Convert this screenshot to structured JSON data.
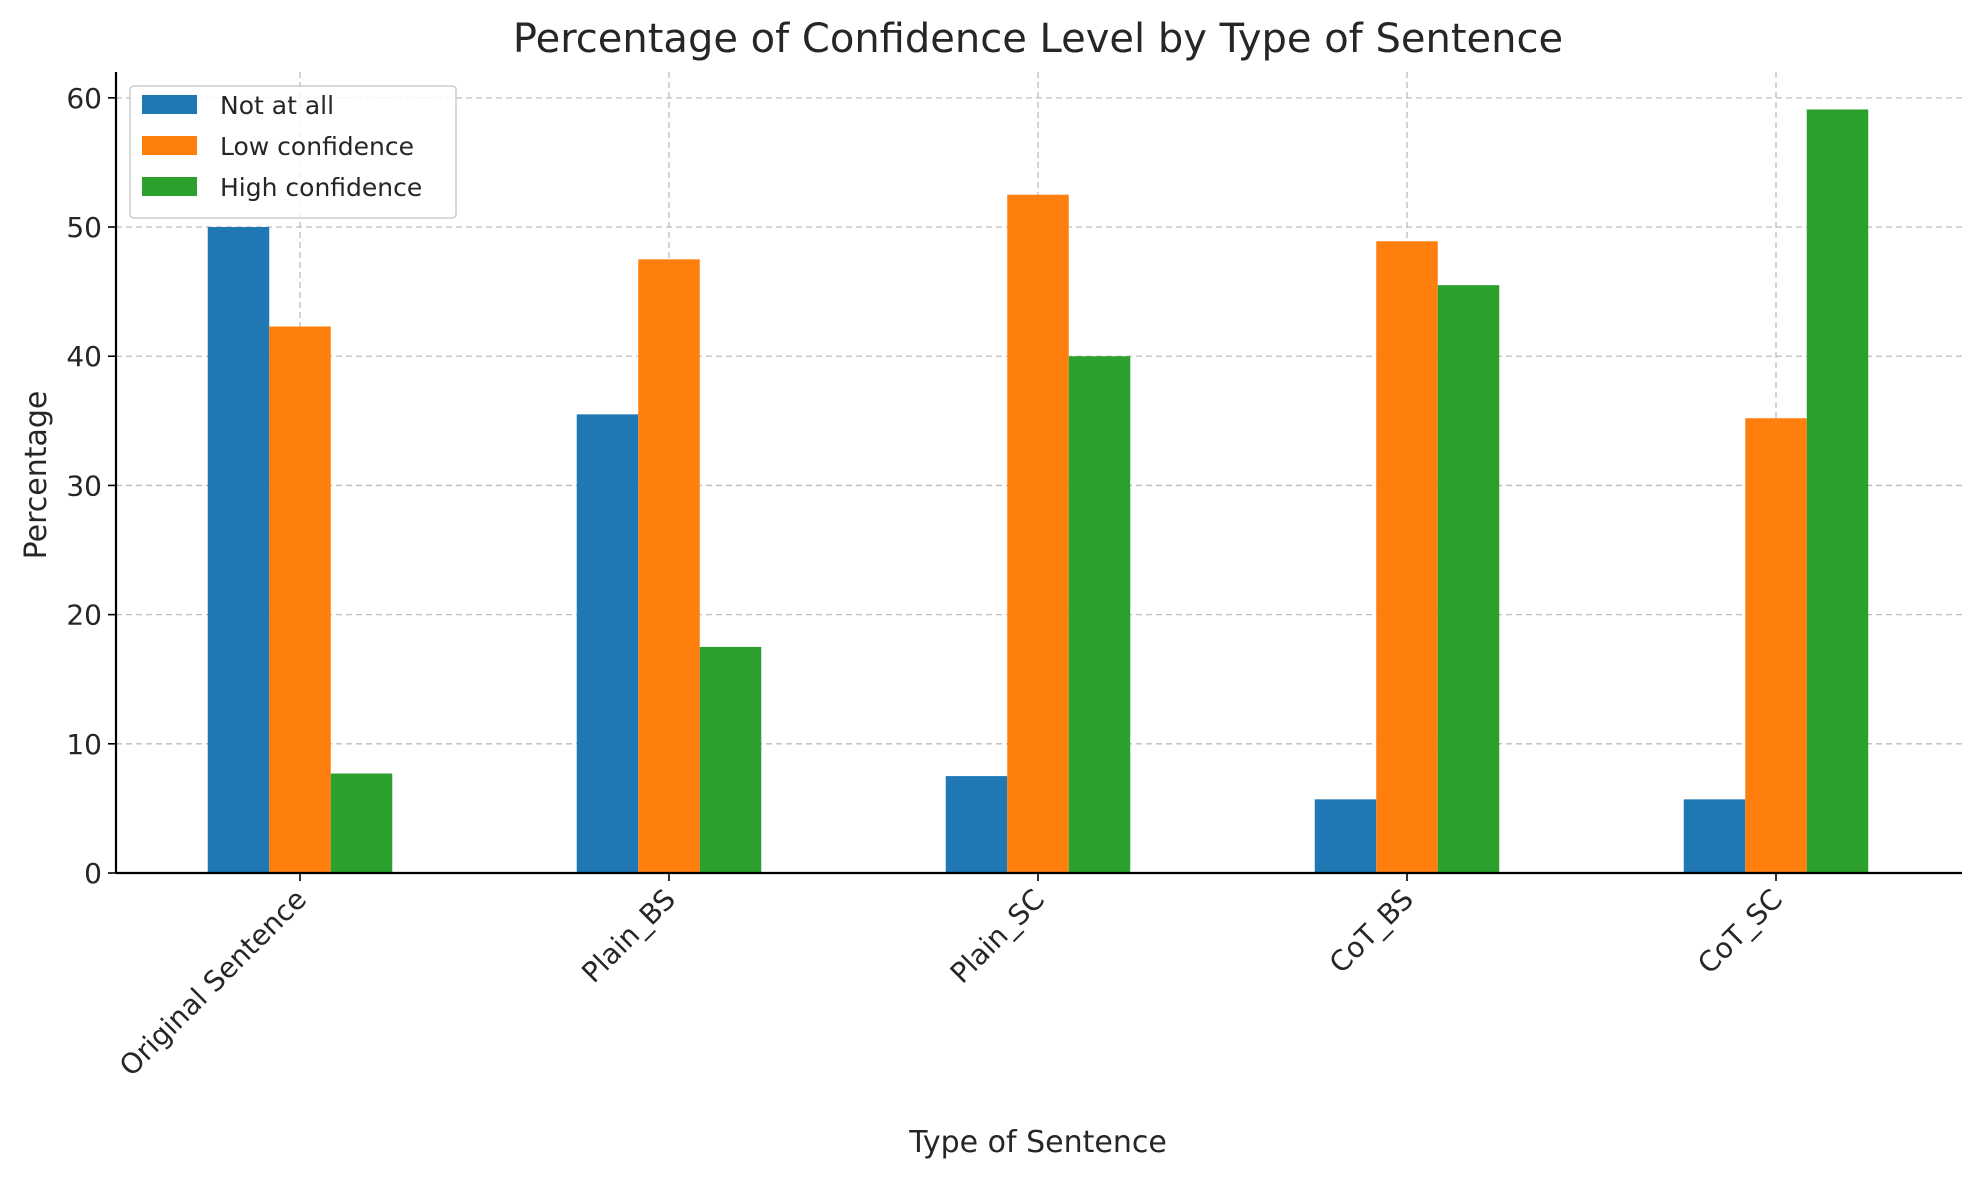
{
  "chart_data": {
    "type": "bar",
    "title": "Percentage of Confidence Level by Type of Sentence",
    "xlabel": "Type of Sentence",
    "ylabel": "Percentage",
    "categories": [
      "Original Sentence",
      "Plain_BS",
      "Plain_SC",
      "CoT_BS",
      "CoT_SC"
    ],
    "series": [
      {
        "name": "Not at all",
        "color": "#1f77b4",
        "values": [
          50.0,
          35.5,
          7.5,
          5.7,
          5.7
        ]
      },
      {
        "name": "Low confidence",
        "color": "#ff7f0e",
        "values": [
          42.3,
          47.5,
          52.5,
          48.9,
          35.2
        ]
      },
      {
        "name": "High confidence",
        "color": "#2ca02c",
        "values": [
          7.7,
          17.5,
          40.0,
          45.5,
          59.1
        ]
      }
    ],
    "ylim": [
      0,
      62
    ],
    "yticks": [
      0,
      10,
      20,
      30,
      40,
      50,
      60
    ],
    "grid": true,
    "legend": "top-left"
  }
}
